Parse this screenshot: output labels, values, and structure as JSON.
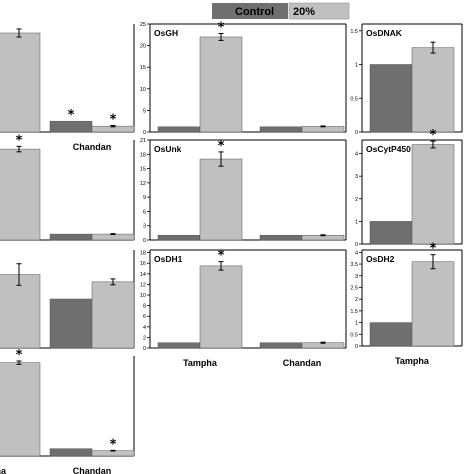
{
  "legend": {
    "items": [
      {
        "label": "Control",
        "color": "#6f6f6f"
      },
      {
        "label": "20%",
        "color": "#c0c0c0"
      }
    ]
  },
  "colors": {
    "control": "#6f6f6f",
    "treatment": "#c0c0c0"
  },
  "chart_data": [
    {
      "type": "bar",
      "title": "",
      "categories": [
        "",
        "Chandan"
      ],
      "ylim": [
        0,
        24
      ],
      "yticks": [],
      "series": [
        {
          "name": "Control",
          "values": [
            1,
            2.4
          ],
          "errors": [
            0,
            0
          ]
        },
        {
          "name": "20%",
          "values": [
            22,
            1.3
          ],
          "errors": [
            0.9,
            0.15
          ]
        }
      ],
      "significant": [
        [
          false,
          true
        ],
        [
          false,
          true
        ]
      ]
    },
    {
      "type": "bar",
      "title": "OsGH",
      "categories": [
        "",
        ""
      ],
      "ylim": [
        0,
        25
      ],
      "yticks": [
        0,
        5,
        10,
        15,
        20,
        25
      ],
      "series": [
        {
          "name": "Control",
          "values": [
            1.2,
            1.2
          ],
          "errors": [
            0,
            0
          ]
        },
        {
          "name": "20%",
          "values": [
            22,
            1.3
          ],
          "errors": [
            0.8,
            0.1
          ]
        }
      ],
      "significant": [
        [
          false,
          false
        ],
        [
          true,
          false
        ]
      ]
    },
    {
      "type": "bar",
      "title": "OsDNAK",
      "categories": [
        ""
      ],
      "ylim": [
        0,
        1.6
      ],
      "yticks": [
        0.0,
        0.5,
        1.0,
        1.5
      ],
      "series": [
        {
          "name": "Control",
          "values": [
            1.0
          ],
          "errors": [
            0
          ]
        },
        {
          "name": "20%",
          "values": [
            1.25
          ],
          "errors": [
            0.08
          ]
        }
      ],
      "significant": [
        [
          false
        ],
        [
          false
        ]
      ]
    },
    {
      "type": "bar",
      "title": "",
      "categories": [
        "",
        ""
      ],
      "ylim": [
        0,
        22
      ],
      "yticks": [],
      "series": [
        {
          "name": "Control",
          "values": [
            1,
            1.3
          ],
          "errors": [
            0,
            0
          ]
        },
        {
          "name": "20%",
          "values": [
            20,
            1.3
          ],
          "errors": [
            0.6,
            0.1
          ]
        }
      ],
      "significant": [
        [
          false,
          false
        ],
        [
          true,
          false
        ]
      ]
    },
    {
      "type": "bar",
      "title": "OsUnk",
      "categories": [
        "",
        ""
      ],
      "ylim": [
        0,
        21
      ],
      "yticks": [
        0,
        3,
        6,
        9,
        12,
        15,
        18,
        21
      ],
      "series": [
        {
          "name": "Control",
          "values": [
            1.0,
            1.0
          ],
          "errors": [
            0,
            0
          ]
        },
        {
          "name": "20%",
          "values": [
            17,
            1.0
          ],
          "errors": [
            1.5,
            0.1
          ]
        }
      ],
      "significant": [
        [
          false,
          false
        ],
        [
          true,
          false
        ]
      ]
    },
    {
      "type": "bar",
      "title": "OsCytP450",
      "categories": [
        ""
      ],
      "ylim": [
        0,
        4.6
      ],
      "yticks": [
        0,
        1,
        2,
        3,
        4
      ],
      "series": [
        {
          "name": "Control",
          "values": [
            1.0
          ],
          "errors": [
            0
          ]
        },
        {
          "name": "20%",
          "values": [
            4.4
          ],
          "errors": [
            0.15
          ]
        }
      ],
      "significant": [
        [
          false
        ],
        [
          true
        ]
      ]
    },
    {
      "type": "bar",
      "title": "",
      "categories": [
        "",
        ""
      ],
      "ylim": [
        0,
        20
      ],
      "yticks": [],
      "series": [
        {
          "name": "Control",
          "values": [
            1,
            10
          ],
          "errors": [
            0,
            0
          ]
        },
        {
          "name": "20%",
          "values": [
            15,
            13.5
          ],
          "errors": [
            2.2,
            0.6
          ]
        }
      ],
      "significant": [
        [
          false,
          false
        ],
        [
          false,
          false
        ]
      ]
    },
    {
      "type": "bar",
      "title": "OsDH1",
      "categories": [
        "Tampha",
        "Chandan"
      ],
      "ylim": [
        0,
        18.5
      ],
      "yticks": [
        0,
        2,
        4,
        6,
        8,
        10,
        12,
        14,
        16,
        18
      ],
      "series": [
        {
          "name": "Control",
          "values": [
            1.0,
            1.0
          ],
          "errors": [
            0,
            0
          ]
        },
        {
          "name": "20%",
          "values": [
            15.5,
            1.0
          ],
          "errors": [
            0.8,
            0.1
          ]
        }
      ],
      "significant": [
        [
          false,
          false
        ],
        [
          true,
          false
        ]
      ]
    },
    {
      "type": "bar",
      "title": "OsDH2",
      "categories": [
        "Tampha"
      ],
      "ylim": [
        0,
        4.1
      ],
      "yticks": [
        0.0,
        0.5,
        1.0,
        1.5,
        2.0,
        2.5,
        3.0,
        3.5,
        4.0
      ],
      "series": [
        {
          "name": "Control",
          "values": [
            1.0
          ],
          "errors": [
            0
          ]
        },
        {
          "name": "20%",
          "values": [
            3.6
          ],
          "errors": [
            0.3
          ]
        }
      ],
      "significant": [
        [
          false
        ],
        [
          true
        ]
      ]
    },
    {
      "type": "bar",
      "title": "",
      "categories": [
        "pha",
        "Chandan"
      ],
      "ylim": [
        0,
        30
      ],
      "yticks": [],
      "series": [
        {
          "name": "Control",
          "values": [
            1,
            2.2
          ],
          "errors": [
            0,
            0
          ]
        },
        {
          "name": "20%",
          "values": [
            28,
            1.6
          ],
          "errors": [
            0.5,
            0.1
          ]
        }
      ],
      "significant": [
        [
          false,
          false
        ],
        [
          true,
          true
        ]
      ]
    }
  ]
}
